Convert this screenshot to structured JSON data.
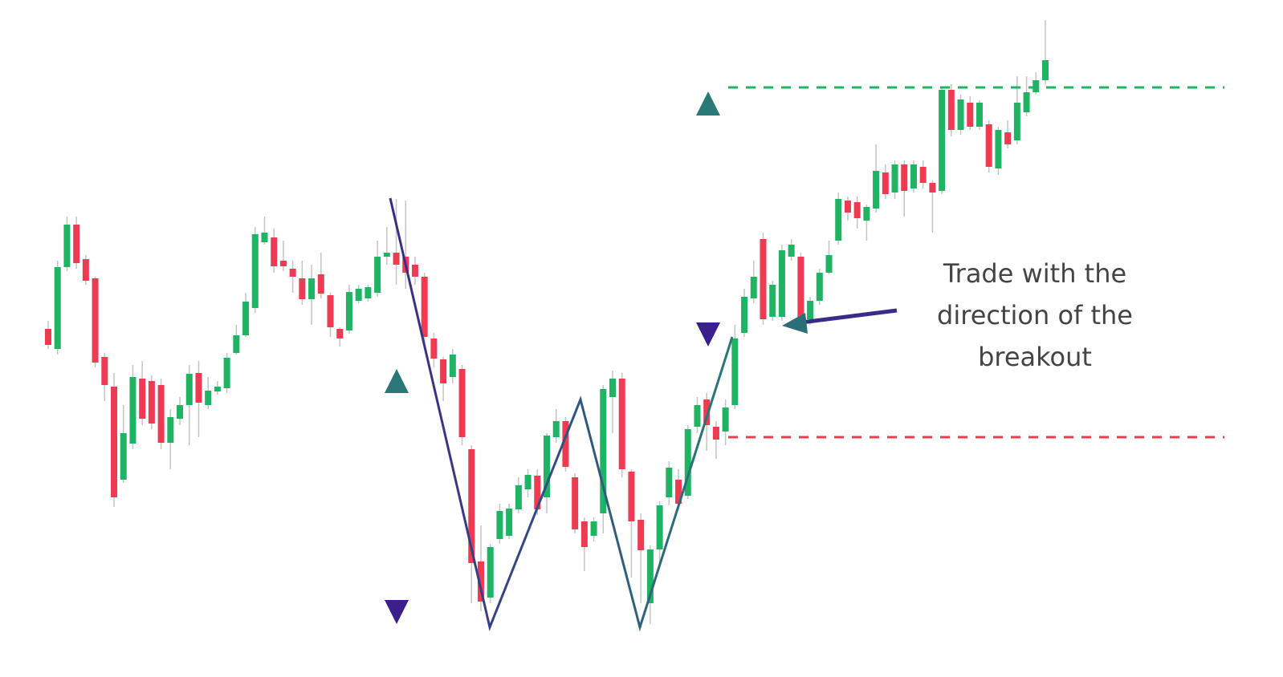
{
  "chart_data": {
    "type": "candlestick",
    "annotation": [
      "Trade with the",
      "direction of the",
      "breakout"
    ],
    "up_color": "#1fb463",
    "down_color": "#ef3b51",
    "ylim": [
      0,
      844
    ],
    "open": [
      434,
      409,
      511,
      564,
      521,
      497,
      399,
      362,
      246,
      291,
      372,
      369,
      364,
      292,
      322,
      339,
      379,
      339,
      356,
      360,
      404,
      426,
      460,
      542,
      548,
      519,
      509,
      497,
      471,
      502,
      476,
      434,
      432,
      469,
      472,
      479,
      524,
      529,
      524,
      514,
      499,
      422,
      396,
      374,
      384,
      284,
      144,
      99,
      172,
      176,
      209,
      234,
      251,
      224,
      299,
      319,
      249,
      194,
      176,
      204,
      349,
      372,
      256,
      196,
      92,
      159,
      224,
      246,
      226,
      312,
      346,
      312,
      306,
      339,
      429,
      472,
      546,
      449,
      449,
      524,
      524,
      446,
      469,
      504,
      544,
      594,
      592,
      569,
      584,
      629,
      604,
      639,
      609,
      636,
      616,
      606,
      732,
      682,
      716,
      686,
      689,
      634,
      679,
      669,
      704,
      729,
      744
    ],
    "high": [
      444,
      519,
      574,
      574,
      526,
      499,
      404,
      379,
      339,
      389,
      394,
      376,
      372,
      334,
      349,
      389,
      394,
      374,
      369,
      404,
      439,
      479,
      561,
      574,
      559,
      544,
      519,
      519,
      514,
      529,
      479,
      436,
      489,
      489,
      489,
      544,
      561,
      596,
      594,
      524,
      504,
      429,
      399,
      409,
      389,
      289,
      189,
      166,
      216,
      216,
      249,
      259,
      259,
      304,
      334,
      324,
      254,
      199,
      199,
      364,
      382,
      379,
      259,
      204,
      164,
      219,
      269,
      259,
      314,
      349,
      354,
      319,
      346,
      439,
      484,
      519,
      554,
      494,
      539,
      546,
      529,
      474,
      509,
      544,
      604,
      599,
      599,
      589,
      664,
      639,
      644,
      644,
      644,
      644,
      619,
      736,
      739,
      726,
      724,
      719,
      694,
      686,
      694,
      749,
      749,
      754,
      819
    ],
    "low": [
      409,
      402,
      506,
      509,
      489,
      386,
      344,
      212,
      242,
      284,
      314,
      309,
      284,
      259,
      314,
      289,
      299,
      334,
      352,
      354,
      402,
      424,
      454,
      539,
      504,
      506,
      479,
      464,
      439,
      472,
      424,
      412,
      428,
      466,
      468,
      474,
      514,
      489,
      484,
      489,
      416,
      386,
      344,
      366,
      289,
      92,
      82,
      92,
      166,
      172,
      204,
      224,
      202,
      204,
      292,
      256,
      179,
      132,
      169,
      179,
      304,
      249,
      124,
      92,
      66,
      139,
      214,
      209,
      222,
      304,
      282,
      272,
      289,
      334,
      424,
      466,
      439,
      444,
      444,
      519,
      444,
      439,
      464,
      502,
      539,
      569,
      559,
      544,
      579,
      596,
      596,
      574,
      604,
      609,
      554,
      602,
      674,
      676,
      682,
      682,
      629,
      626,
      659,
      664,
      699,
      726,
      739
    ],
    "close": [
      414,
      511,
      564,
      516,
      494,
      392,
      364,
      224,
      304,
      374,
      322,
      316,
      292,
      324,
      339,
      378,
      342,
      357,
      362,
      398,
      426,
      468,
      552,
      554,
      512,
      512,
      499,
      471,
      497,
      478,
      436,
      422,
      480,
      484,
      486,
      524,
      529,
      514,
      504,
      499,
      424,
      397,
      366,
      402,
      299,
      142,
      94,
      162,
      207,
      210,
      239,
      252,
      209,
      301,
      319,
      262,
      184,
      162,
      194,
      359,
      372,
      259,
      194,
      158,
      159,
      214,
      261,
      216,
      309,
      339,
      314,
      296,
      336,
      422,
      474,
      499,
      446,
      489,
      532,
      539,
      449,
      469,
      504,
      526,
      596,
      579,
      572,
      586,
      631,
      602,
      639,
      606,
      639,
      616,
      604,
      732,
      682,
      720,
      686,
      716,
      636,
      682,
      664,
      716,
      729,
      744,
      769
    ]
  }
}
